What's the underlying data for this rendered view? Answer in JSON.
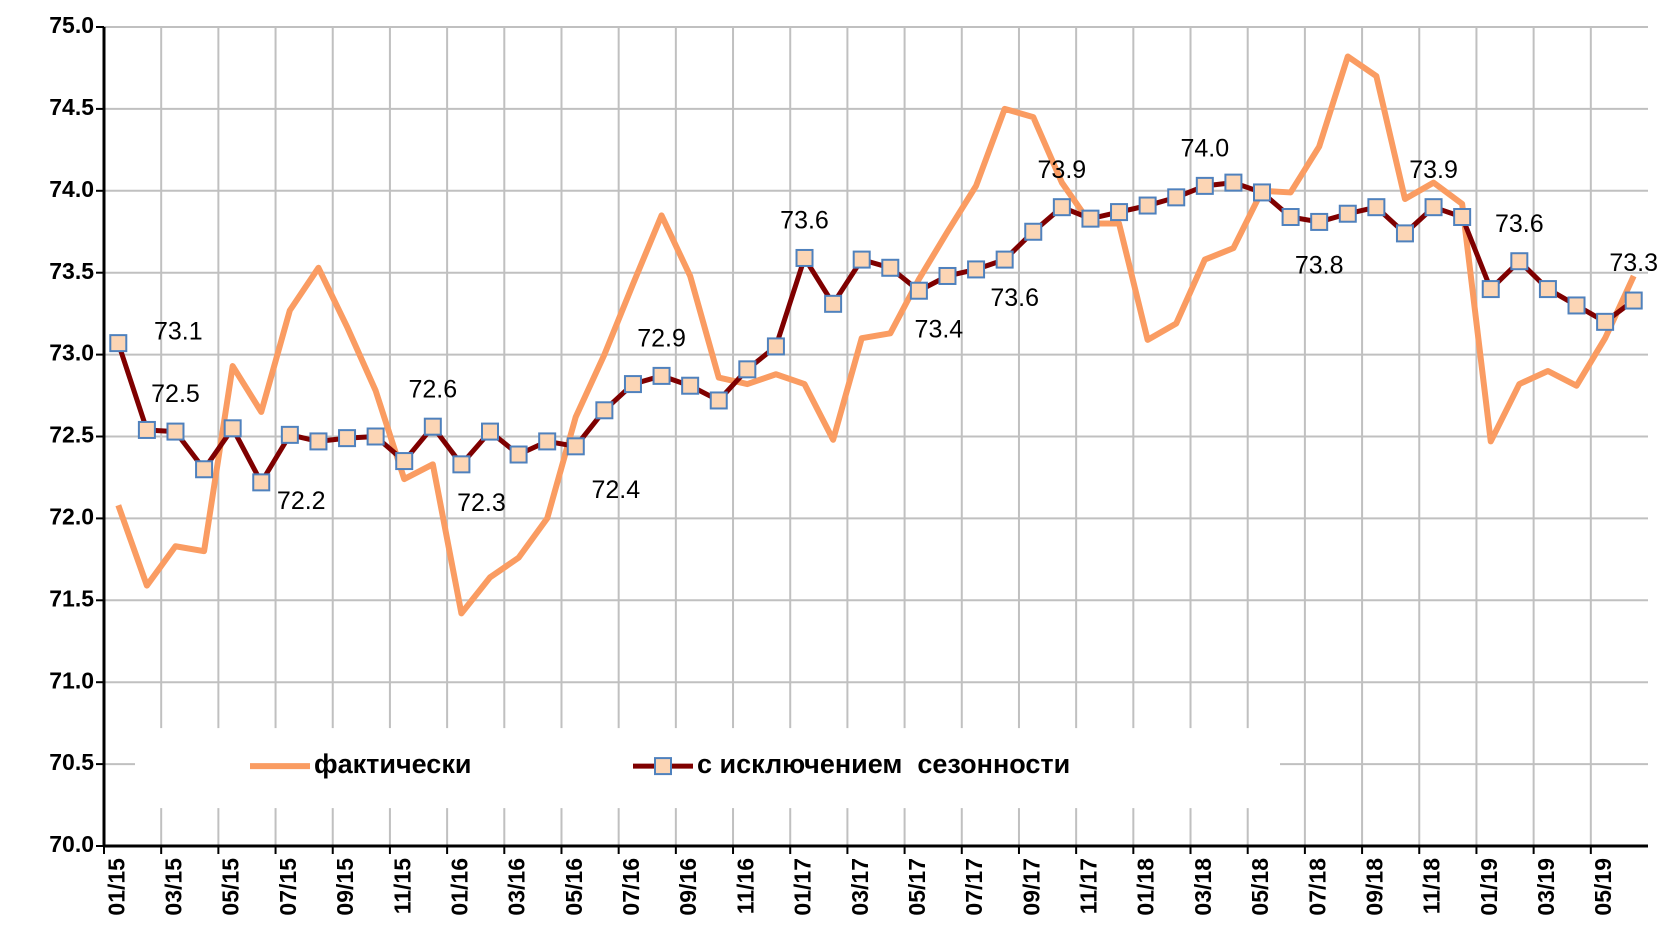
{
  "chart_data": {
    "type": "line",
    "categories": [
      "01/15",
      null,
      "03/15",
      null,
      "05/15",
      null,
      "07/15",
      null,
      "09/15",
      null,
      "11/15",
      null,
      "01/16",
      null,
      "03/16",
      null,
      "05/16",
      null,
      "07/16",
      null,
      "09/16",
      null,
      "11/16",
      null,
      "01/17",
      null,
      "03/17",
      null,
      "05/17",
      null,
      "07/17",
      null,
      "09/17",
      null,
      "11/17",
      null,
      "01/18",
      null,
      "03/18",
      null,
      "05/18",
      null,
      "07/18",
      null,
      "09/18",
      null,
      "11/18",
      null,
      "01/19",
      null,
      "03/19",
      null,
      "05/19",
      null
    ],
    "series": [
      {
        "name": "фактически",
        "color": "#fa9c62",
        "values": [
          72.08,
          71.59,
          71.83,
          71.8,
          72.93,
          72.65,
          73.27,
          73.53,
          73.17,
          72.78,
          72.24,
          72.33,
          71.42,
          71.64,
          71.76,
          72.0,
          72.62,
          73.0,
          73.43,
          73.85,
          73.48,
          72.86,
          72.82,
          72.88,
          72.82,
          72.48,
          73.1,
          73.13,
          73.46,
          73.75,
          74.03,
          74.5,
          74.45,
          74.05,
          73.8,
          73.8,
          73.09,
          73.19,
          73.58,
          73.65,
          74.0,
          73.99,
          74.27,
          74.82,
          74.7,
          73.95,
          74.05,
          73.92,
          72.47,
          72.82,
          72.9,
          72.81,
          73.1,
          73.48
        ]
      },
      {
        "name": "с исключением  сезонности",
        "color": "#7f0000",
        "marker_fill": "#fcd5b4",
        "marker_edge": "#4f81bd",
        "values": [
          73.07,
          72.54,
          72.53,
          72.3,
          72.55,
          72.22,
          72.51,
          72.47,
          72.49,
          72.5,
          72.35,
          72.56,
          72.33,
          72.53,
          72.39,
          72.47,
          72.44,
          72.66,
          72.82,
          72.87,
          72.81,
          72.72,
          72.91,
          73.05,
          73.59,
          73.31,
          73.58,
          73.53,
          73.39,
          73.48,
          73.52,
          73.58,
          73.75,
          73.9,
          73.83,
          73.87,
          73.91,
          73.96,
          74.03,
          74.05,
          73.99,
          73.84,
          73.81,
          73.86,
          73.9,
          73.74,
          73.9,
          73.84,
          73.4,
          73.57,
          73.4,
          73.3,
          73.2,
          73.33
        ],
        "value_labels": [
          "73.1",
          null,
          "72.5",
          null,
          null,
          "72.2",
          null,
          null,
          null,
          null,
          null,
          "72.6",
          "72.3",
          null,
          null,
          null,
          "72.4",
          null,
          null,
          "72.9",
          null,
          null,
          null,
          null,
          "73.6",
          null,
          null,
          null,
          "73.4",
          null,
          null,
          "73.6",
          null,
          "73.9",
          null,
          null,
          null,
          null,
          "74.0",
          null,
          null,
          null,
          "73.8",
          null,
          null,
          null,
          "73.9",
          null,
          null,
          "73.6",
          null,
          null,
          null,
          "73.3"
        ]
      }
    ],
    "ylim": [
      70,
      75
    ],
    "yticks": [
      {
        "value": 70,
        "label": "70.0"
      },
      {
        "value": 70.5,
        "label": "70.5"
      },
      {
        "value": 71,
        "label": "71.0"
      },
      {
        "value": 71.5,
        "label": "71.5"
      },
      {
        "value": 72,
        "label": "72.0"
      },
      {
        "value": 72.5,
        "label": "72.5"
      },
      {
        "value": 73,
        "label": "73.0"
      },
      {
        "value": 73.5,
        "label": "73.5"
      },
      {
        "value": 74,
        "label": "74.0"
      },
      {
        "value": 74.5,
        "label": "74.5"
      },
      {
        "value": 75,
        "label": "75.0"
      }
    ],
    "grid": true,
    "legend": "bottom"
  }
}
